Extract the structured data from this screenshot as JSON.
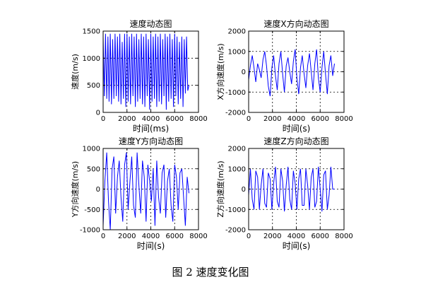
{
  "caption": "图 2 速度变化图",
  "colors": {
    "line": "#0000ff",
    "axes": "#000000",
    "grid": "#000000"
  },
  "chart_data": [
    {
      "type": "line",
      "title": "速度动态图",
      "xlabel": "时间(ms)",
      "ylabel": "速度(m/s)",
      "xlim": [
        0,
        8000
      ],
      "ylim": [
        0,
        1500
      ],
      "xticks": [
        0,
        2000,
        4000,
        6000,
        8000
      ],
      "yticks": [
        0,
        500,
        1000,
        1500
      ],
      "grid": true,
      "series": [
        {
          "x": [
            0,
            100,
            200,
            300,
            400,
            500,
            600,
            700,
            800,
            900,
            1000,
            1100,
            1200,
            1300,
            1400,
            1500,
            1600,
            1700,
            1800,
            1900,
            2000,
            2100,
            2200,
            2300,
            2400,
            2500,
            2600,
            2700,
            2800,
            2900,
            3000,
            3100,
            3200,
            3300,
            3400,
            3500,
            3600,
            3700,
            3800,
            3900,
            4000,
            4100,
            4200,
            4300,
            4400,
            4500,
            4600,
            4700,
            4800,
            4900,
            5000,
            5100,
            5200,
            5300,
            5400,
            5500,
            5600,
            5700,
            5800,
            5900,
            6000,
            6100,
            6200,
            6300,
            6400,
            6500,
            6600,
            6700,
            6800,
            6900,
            7000,
            7100,
            7200
          ],
          "y": [
            1400,
            300,
            1450,
            250,
            1400,
            200,
            1450,
            150,
            1350,
            250,
            1450,
            300,
            1400,
            200,
            1450,
            150,
            1300,
            250,
            1450,
            100,
            1450,
            200,
            1400,
            150,
            1450,
            300,
            1400,
            100,
            1450,
            200,
            1350,
            250,
            1450,
            150,
            1400,
            100,
            1450,
            300,
            1350,
            50,
            1450,
            200,
            1400,
            250,
            1450,
            100,
            1400,
            200,
            1450,
            150,
            1350,
            300,
            1450,
            50,
            1400,
            200,
            1450,
            250,
            1350,
            100,
            1450,
            300,
            1400,
            150,
            1300,
            250,
            1400,
            100,
            1350,
            350,
            1400,
            400,
            500
          ]
        }
      ]
    },
    {
      "type": "line",
      "title": "速度X方向动态图",
      "xlabel": "时间(s)",
      "ylabel": "X方向速度(m/s)",
      "xlim": [
        0,
        8000
      ],
      "ylim": [
        -2000,
        2000
      ],
      "xticks": [
        0,
        2000,
        4000,
        6000,
        8000
      ],
      "yticks": [
        -2000,
        -1000,
        0,
        1000,
        2000
      ],
      "grid": true,
      "series": [
        {
          "x": [
            0,
            150,
            300,
            450,
            600,
            750,
            900,
            1050,
            1200,
            1350,
            1500,
            1650,
            1800,
            1950,
            2100,
            2250,
            2400,
            2550,
            2700,
            2850,
            3000,
            3150,
            3300,
            3450,
            3600,
            3750,
            3900,
            4050,
            4200,
            4350,
            4500,
            4650,
            4800,
            4950,
            5100,
            5250,
            5400,
            5550,
            5700,
            5850,
            6000,
            6150,
            6300,
            6450,
            6600,
            6750,
            6900,
            7050,
            7200
          ],
          "y": [
            -400,
            300,
            800,
            200,
            -500,
            400,
            100,
            -300,
            600,
            1000,
            300,
            -700,
            -1200,
            200,
            800,
            -200,
            -900,
            400,
            1000,
            -100,
            -1000,
            300,
            700,
            0,
            -600,
            500,
            1100,
            -300,
            -1100,
            200,
            800,
            -100,
            -800,
            300,
            900,
            0,
            -900,
            400,
            1100,
            -300,
            -1000,
            200,
            1000,
            -100,
            -1100,
            300,
            800,
            -200,
            400
          ]
        }
      ]
    },
    {
      "type": "line",
      "title": "速度Y方向动态图",
      "xlabel": "时间(s)",
      "ylabel": "Y方向速度(m/s)",
      "xlim": [
        0,
        8000
      ],
      "ylim": [
        -1000,
        1000
      ],
      "xticks": [
        0,
        2000,
        4000,
        6000,
        8000
      ],
      "yticks": [
        -1000,
        -500,
        0,
        500,
        1000
      ],
      "grid": true,
      "series": [
        {
          "x": [
            0,
            150,
            300,
            450,
            600,
            750,
            900,
            1050,
            1200,
            1350,
            1500,
            1650,
            1800,
            1950,
            2100,
            2250,
            2400,
            2550,
            2700,
            2850,
            3000,
            3150,
            3300,
            3450,
            3600,
            3750,
            3900,
            4050,
            4200,
            4350,
            4500,
            4650,
            4800,
            4950,
            5100,
            5250,
            5400,
            5550,
            5700,
            5850,
            6000,
            6150,
            6300,
            6450,
            6600,
            6750,
            6900,
            7050,
            7200
          ],
          "y": [
            -900,
            200,
            900,
            -300,
            -1000,
            500,
            800,
            -600,
            300,
            700,
            -200,
            -800,
            600,
            900,
            -500,
            200,
            800,
            -400,
            -700,
            900,
            100,
            -600,
            700,
            300,
            -800,
            600,
            200,
            -300,
            500,
            -900,
            700,
            -200,
            -600,
            400,
            600,
            -700,
            200,
            500,
            -400,
            -800,
            600,
            300,
            -500,
            400,
            500,
            -200,
            -900,
            300,
            -100
          ]
        }
      ]
    },
    {
      "type": "line",
      "title": "速度Z方向动态图",
      "xlabel": "时间(s)",
      "ylabel": "Z方向速度(m/s)",
      "xlim": [
        0,
        8000
      ],
      "ylim": [
        -2000,
        2000
      ],
      "xticks": [
        0,
        2000,
        4000,
        6000,
        8000
      ],
      "yticks": [
        -2000,
        -1000,
        0,
        1000,
        2000
      ],
      "grid": true,
      "series": [
        {
          "x": [
            0,
            150,
            300,
            450,
            600,
            750,
            900,
            1050,
            1200,
            1350,
            1500,
            1650,
            1800,
            1950,
            2100,
            2250,
            2400,
            2550,
            2700,
            2850,
            3000,
            3150,
            3300,
            3450,
            3600,
            3750,
            3900,
            4050,
            4200,
            4350,
            4500,
            4650,
            4800,
            4950,
            5100,
            5250,
            5400,
            5550,
            5700,
            5850,
            6000,
            6150,
            6300,
            6450,
            6600,
            6750,
            6900,
            7050,
            7200
          ],
          "y": [
            -300,
            1000,
            -500,
            -1000,
            900,
            600,
            -1000,
            200,
            1000,
            -700,
            -900,
            800,
            500,
            -1000,
            300,
            1100,
            -600,
            -900,
            1000,
            400,
            -1100,
            200,
            1100,
            -500,
            -1000,
            900,
            300,
            -1000,
            500,
            1000,
            -800,
            -800,
            1000,
            200,
            -1000,
            600,
            1000,
            -900,
            -600,
            1100,
            0,
            -1100,
            700,
            900,
            -1000,
            -300,
            1100,
            0,
            0
          ]
        }
      ]
    }
  ]
}
